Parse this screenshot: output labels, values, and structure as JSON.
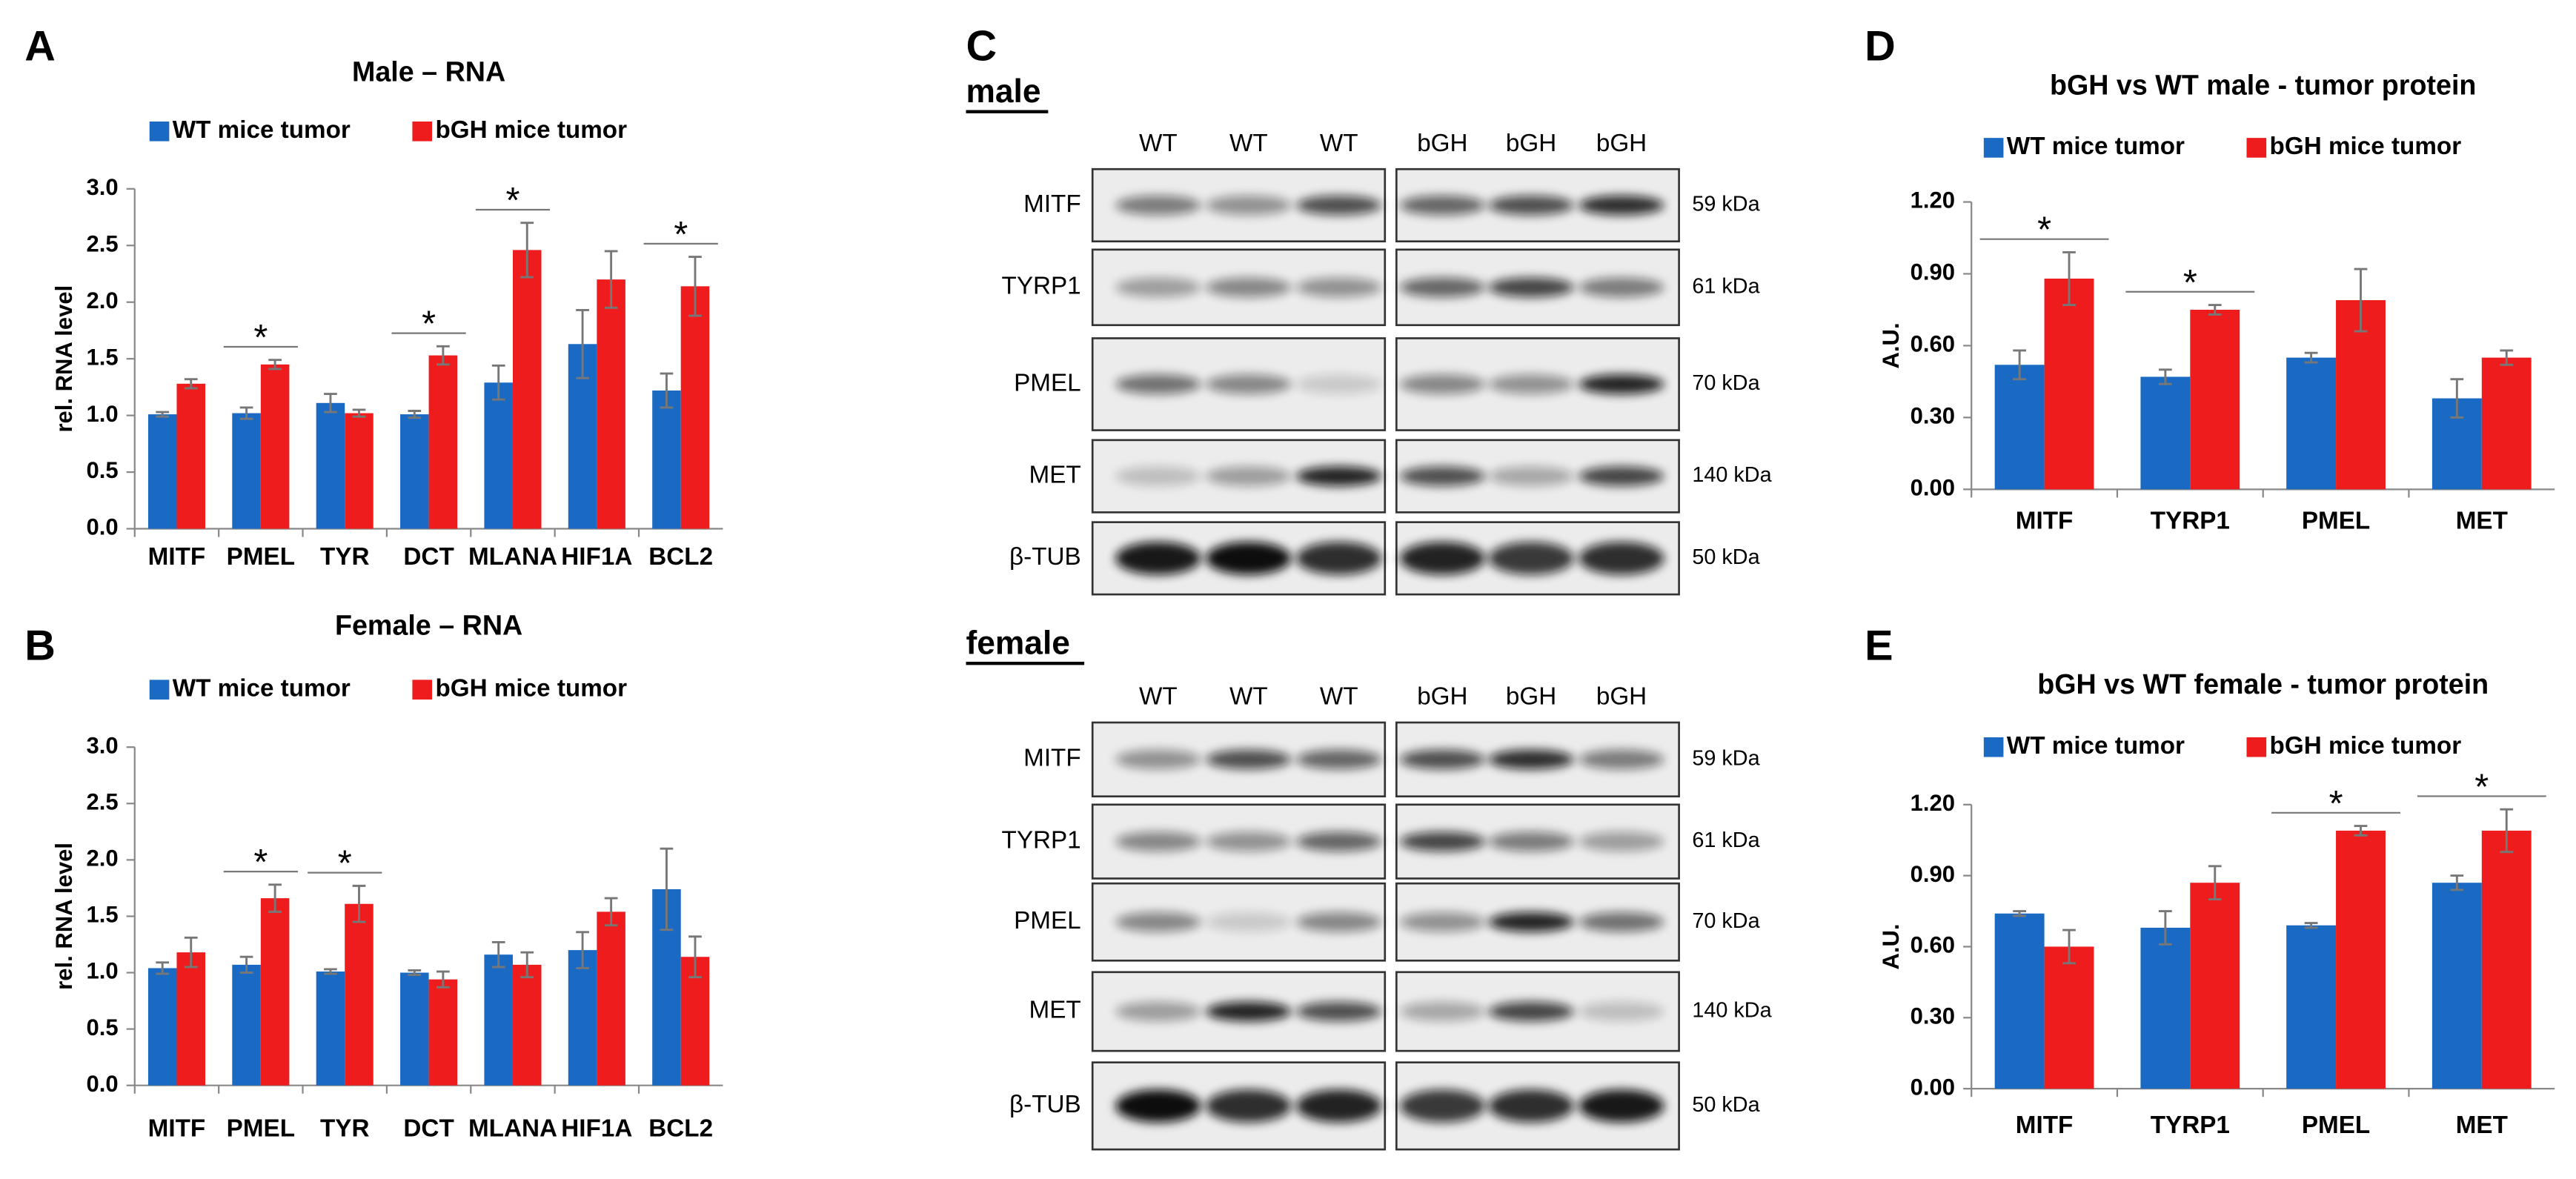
{
  "chart_data": [
    {
      "type": "bar",
      "panel": "A",
      "title": "Male – RNA",
      "ylabel": "rel. RNA level",
      "legend": "top",
      "categories": [
        "MITF",
        "PMEL",
        "TYR",
        "DCT",
        "MLANA",
        "HIF1A",
        "BCL2"
      ],
      "series": [
        {
          "name": "WT mice tumor",
          "color": "#1a6ac4",
          "values": [
            1.01,
            1.02,
            1.11,
            1.01,
            1.29,
            1.63,
            1.22
          ],
          "errors": [
            0.02,
            0.05,
            0.08,
            0.03,
            0.15,
            0.3,
            0.15
          ]
        },
        {
          "name": "bGH mice tumor",
          "color": "#ee1c1c",
          "values": [
            1.28,
            1.45,
            1.02,
            1.53,
            2.46,
            2.2,
            2.14
          ],
          "errors": [
            0.04,
            0.04,
            0.03,
            0.08,
            0.24,
            0.25,
            0.26
          ]
        }
      ],
      "annotations": [
        null,
        "*",
        null,
        "*",
        "*",
        null,
        "*"
      ],
      "ylim": [
        0,
        3
      ],
      "yticks": [
        {
          "value": 0,
          "label": "0.0"
        },
        0.5,
        {
          "value": 1,
          "label": "1.0"
        },
        1.5,
        {
          "value": 2,
          "label": "2.0"
        },
        2.5,
        {
          "value": 3,
          "label": "3.0"
        }
      ]
    },
    {
      "type": "bar",
      "panel": "B",
      "title": "Female – RNA",
      "ylabel": "rel. RNA level",
      "legend": "top",
      "categories": [
        "MITF",
        "PMEL",
        "TYR",
        "DCT",
        "MLANA",
        "HIF1A",
        "BCL2"
      ],
      "series": [
        {
          "name": "WT mice tumor",
          "color": "#1a6ac4",
          "values": [
            1.04,
            1.07,
            1.01,
            1.0,
            1.16,
            1.2,
            1.74
          ],
          "errors": [
            0.05,
            0.07,
            0.02,
            0.02,
            0.11,
            0.16,
            0.36
          ]
        },
        {
          "name": "bGH mice tumor",
          "color": "#ee1c1c",
          "values": [
            1.18,
            1.66,
            1.61,
            0.94,
            1.07,
            1.54,
            1.14
          ],
          "errors": [
            0.13,
            0.12,
            0.16,
            0.07,
            0.11,
            0.12,
            0.18
          ]
        }
      ],
      "annotations": [
        null,
        "*",
        "*",
        null,
        null,
        null,
        null
      ],
      "ylim": [
        0,
        3
      ],
      "yticks": [
        {
          "value": 0,
          "label": "0.0"
        },
        0.5,
        {
          "value": 1,
          "label": "1.0"
        },
        1.5,
        {
          "value": 2,
          "label": "2.0"
        },
        2.5,
        {
          "value": 3,
          "label": "3.0"
        }
      ]
    },
    {
      "type": "bar",
      "panel": "D",
      "title": "bGH vs WT male - tumor protein",
      "ylabel": "A.U.",
      "legend": "top",
      "categories": [
        "MITF",
        "TYRP1",
        "PMEL",
        "MET"
      ],
      "series": [
        {
          "name": "WT mice tumor",
          "color": "#1a6ac4",
          "values": [
            0.52,
            0.47,
            0.55,
            0.38
          ],
          "errors": [
            0.06,
            0.03,
            0.02,
            0.08
          ]
        },
        {
          "name": "bGH mice tumor",
          "color": "#ee1c1c",
          "values": [
            0.88,
            0.75,
            0.79,
            0.55
          ],
          "errors": [
            0.11,
            0.02,
            0.13,
            0.03
          ]
        }
      ],
      "annotations": [
        "*",
        "*",
        null,
        null
      ],
      "ylim": [
        0,
        1.2
      ],
      "yticks": [
        {
          "value": 0,
          "label": "0.00"
        },
        {
          "value": 0.3,
          "label": "0.30"
        },
        {
          "value": 0.6,
          "label": "0.60"
        },
        {
          "value": 0.9,
          "label": "0.90"
        },
        {
          "value": 1.2,
          "label": "1.20"
        }
      ]
    },
    {
      "type": "bar",
      "panel": "E",
      "title": "bGH vs WT female - tumor protein",
      "ylabel": "A.U.",
      "legend": "top",
      "categories": [
        "MITF",
        "TYRP1",
        "PMEL",
        "MET"
      ],
      "series": [
        {
          "name": "WT mice tumor",
          "color": "#1a6ac4",
          "values": [
            0.74,
            0.68,
            0.69,
            0.87
          ],
          "errors": [
            0.01,
            0.07,
            0.01,
            0.03
          ]
        },
        {
          "name": "bGH mice tumor",
          "color": "#ee1c1c",
          "values": [
            0.6,
            0.87,
            1.09,
            1.09
          ],
          "errors": [
            0.07,
            0.07,
            0.02,
            0.09
          ]
        }
      ],
      "annotations": [
        null,
        null,
        "*",
        "*"
      ],
      "ylim": [
        0,
        1.2
      ],
      "yticks": [
        {
          "value": 0,
          "label": "0.00"
        },
        {
          "value": 0.3,
          "label": "0.30"
        },
        {
          "value": 0.6,
          "label": "0.60"
        },
        {
          "value": 0.9,
          "label": "0.90"
        },
        {
          "value": 1.2,
          "label": "1.20"
        }
      ]
    }
  ],
  "western_blots": {
    "panel": "C",
    "sections": [
      {
        "title": "male",
        "lanes": [
          "WT",
          "WT",
          "WT",
          "bGH",
          "bGH",
          "bGH"
        ],
        "rows": [
          {
            "protein": "MITF",
            "size": "59 kDa"
          },
          {
            "protein": "TYRP1",
            "size": "61 kDa"
          },
          {
            "protein": "PMEL",
            "size": "70 kDa"
          },
          {
            "protein": "MET",
            "size": "140 kDa"
          },
          {
            "protein": "β-TUB",
            "size": "50 kDa"
          }
        ]
      },
      {
        "title": "female",
        "lanes": [
          "WT",
          "WT",
          "WT",
          "bGH",
          "bGH",
          "bGH"
        ],
        "rows": [
          {
            "protein": "MITF",
            "size": "59 kDa"
          },
          {
            "protein": "TYRP1",
            "size": "61 kDa"
          },
          {
            "protein": "PMEL",
            "size": "70 kDa"
          },
          {
            "protein": "MET",
            "size": "140 kDa"
          },
          {
            "protein": "β-TUB",
            "size": "50 kDa"
          }
        ]
      }
    ]
  }
}
